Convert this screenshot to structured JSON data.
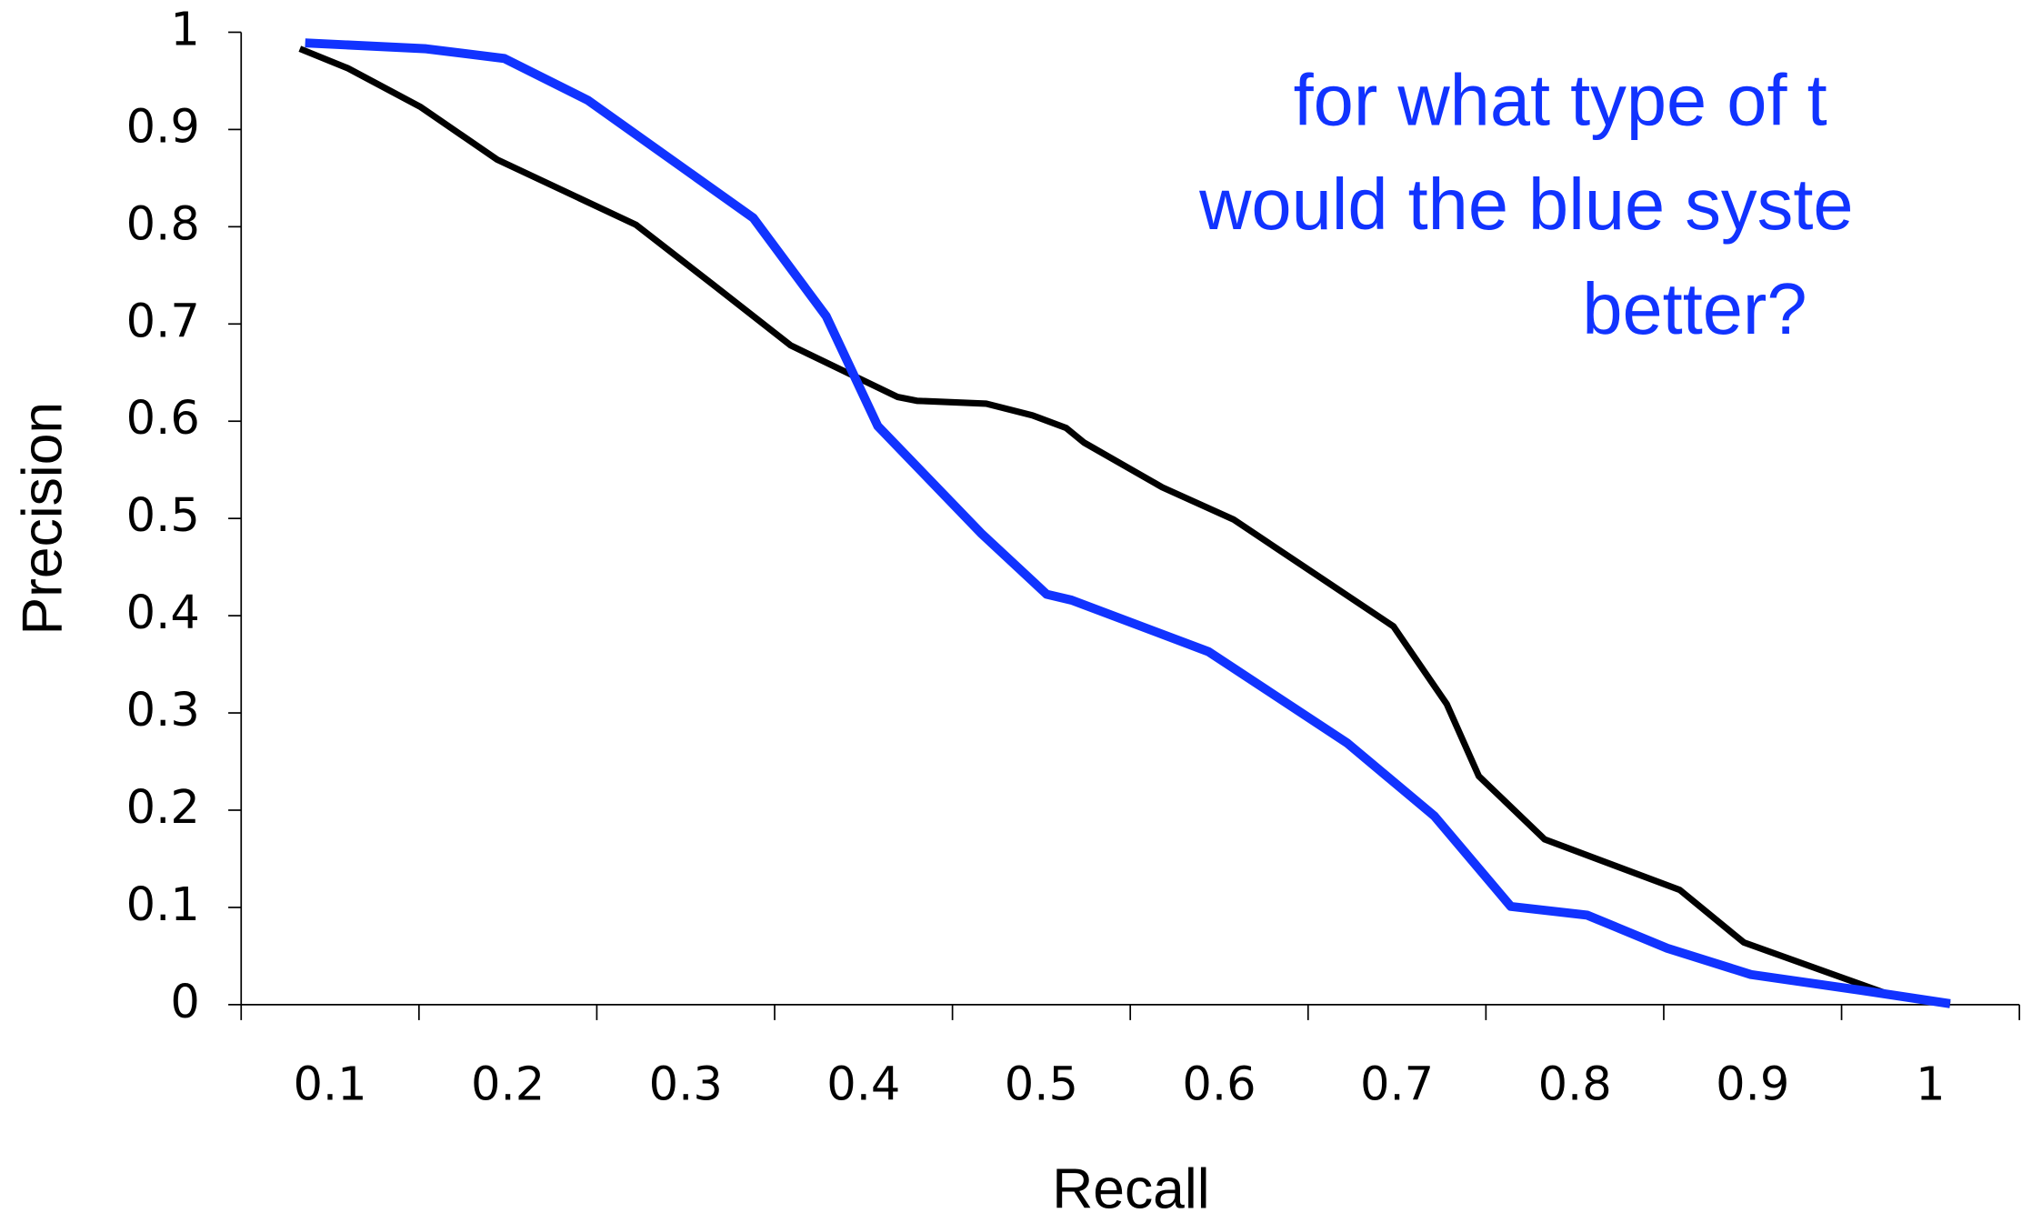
{
  "chart_data": {
    "type": "line",
    "xlabel": "Recall",
    "ylabel": "Precision",
    "annotation": [
      "for what type of t",
      "would the blue syste",
      "better?"
    ],
    "xlim": [
      0.05,
      1.05
    ],
    "xticks": [
      0.1,
      0.2,
      0.3,
      0.4,
      0.5,
      0.6,
      0.7,
      0.8,
      0.9,
      1
    ],
    "ylim": [
      0,
      1
    ],
    "yticks": [
      0,
      0.1,
      0.2,
      0.3,
      0.4,
      0.5,
      0.6,
      0.7,
      0.8,
      0.9,
      1
    ],
    "grid": false,
    "series": [
      {
        "color": "#000000",
        "x": [
          0.083,
          0.11,
          0.151,
          0.194,
          0.272,
          0.315,
          0.359,
          0.419,
          0.43,
          0.469,
          0.495,
          0.514,
          0.524,
          0.568,
          0.608,
          0.698,
          0.728,
          0.746,
          0.783,
          0.859,
          0.895,
          0.979,
          1.011
        ],
        "values": [
          0.983,
          0.963,
          0.923,
          0.869,
          0.802,
          0.741,
          0.678,
          0.625,
          0.621,
          0.618,
          0.606,
          0.593,
          0.578,
          0.532,
          0.499,
          0.389,
          0.309,
          0.235,
          0.17,
          0.118,
          0.064,
          0.009,
          0.0
        ]
      },
      {
        "color": "#1133ff",
        "x": [
          0.086,
          0.154,
          0.198,
          0.245,
          0.338,
          0.379,
          0.408,
          0.466,
          0.503,
          0.517,
          0.594,
          0.672,
          0.721,
          0.764,
          0.807,
          0.852,
          0.899,
          0.96,
          1.011
        ],
        "values": [
          0.989,
          0.983,
          0.973,
          0.93,
          0.809,
          0.708,
          0.595,
          0.485,
          0.422,
          0.416,
          0.363,
          0.269,
          0.194,
          0.101,
          0.092,
          0.058,
          0.031,
          0.015,
          0.001
        ]
      }
    ]
  }
}
